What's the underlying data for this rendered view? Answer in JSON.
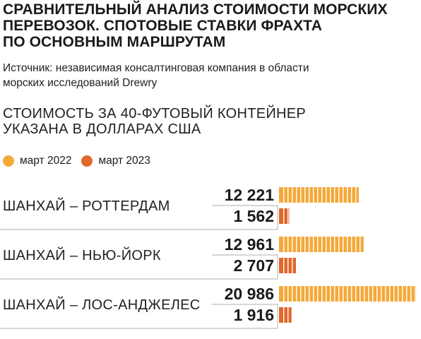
{
  "header": {
    "title_lines": [
      "СРАВНИТЕЛЬНЫЙ АНАЛИЗ СТОИМОСТИ МОРСКИХ",
      "ПЕРЕВОЗОК. СПОТОВЫЕ СТАВКИ ФРАХТА",
      "ПО ОСНОВНЫМ МАРШРУТАМ"
    ],
    "source_lines": [
      "Источник: независимая консалтинговая компания в области",
      "морских исследований Drewry"
    ],
    "subtitle_lines": [
      "СТОИМОСТЬ ЗА 40-ФУТОВЫЙ КОНТЕЙНЕР",
      "УКАЗАНА В ДОЛЛАРАХ США"
    ]
  },
  "colors": {
    "march_2022": "#f4a93a",
    "march_2023": "#e2672a",
    "divider": "#bdbdbd",
    "text": "#1a1a1a"
  },
  "chart_data": {
    "type": "bar",
    "orientation": "horizontal",
    "categories": [
      "ШАНХАЙ – РОТТЕРДАМ",
      "ШАНХАЙ – НЬЮ-ЙОРК",
      "ШАНХАЙ – ЛОС-АНДЖЕЛЕС"
    ],
    "series": [
      {
        "name": "март 2022",
        "values": [
          12221,
          12961,
          20986
        ],
        "labels": [
          "12 221",
          "12 961",
          "20 986"
        ],
        "color": "#f4a93a"
      },
      {
        "name": "март 2023",
        "values": [
          1562,
          2707,
          1916
        ],
        "labels": [
          "1 562",
          "2 707",
          "1 916"
        ],
        "color": "#e2672a"
      }
    ],
    "xlim": [
      0,
      21000
    ],
    "grid": false,
    "legend": "top-left"
  }
}
